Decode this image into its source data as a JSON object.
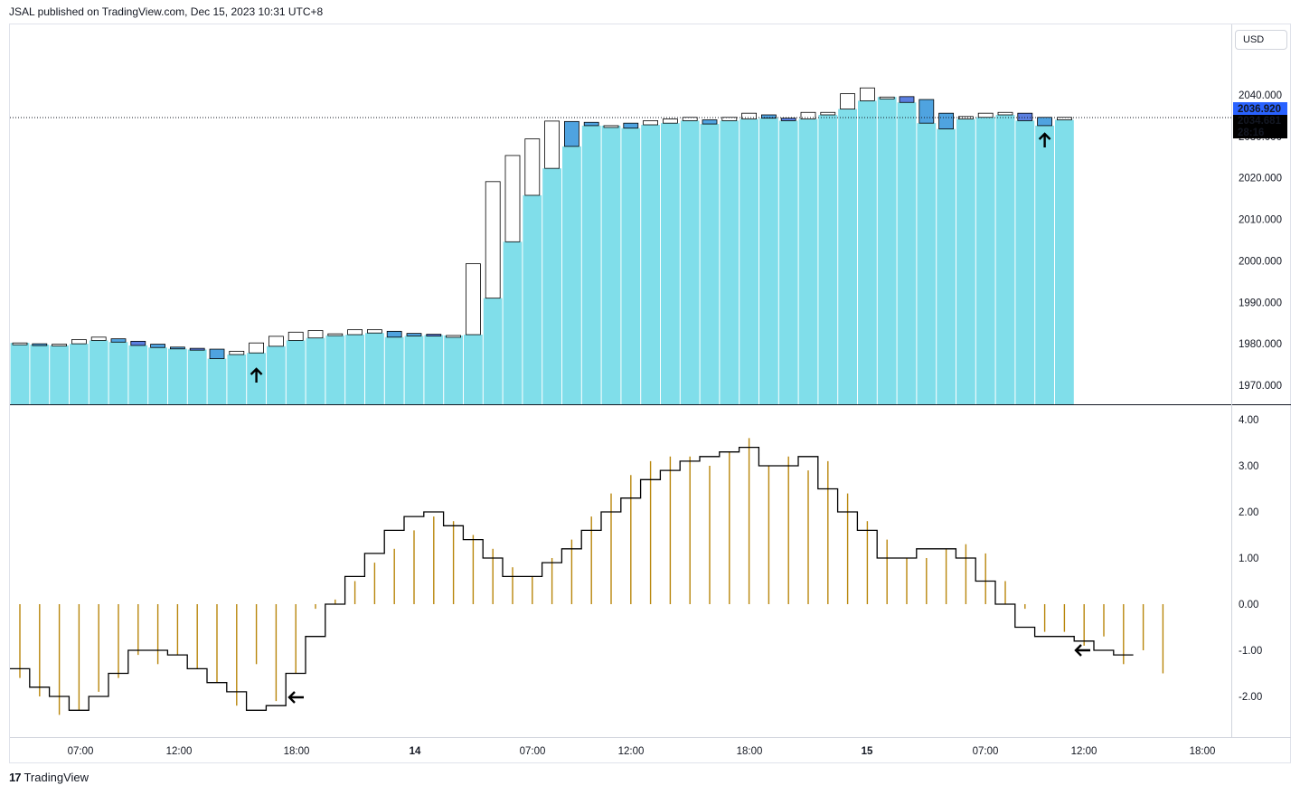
{
  "header": {
    "published": "JSAL published on TradingView.com, Dec 15, 2023 10:31 UTC+8"
  },
  "currency": {
    "label": "USD"
  },
  "footer": {
    "brand": "TradingView"
  },
  "colors": {
    "volume_bar": "#80deea",
    "bull_candle": "#ffffff",
    "bear_candle": "#5b7fe0",
    "bear_candle_light": "#4fa3e0",
    "oscillator_line": "#000000",
    "histogram": "#b8860b",
    "last_price_bg": "#2962ff",
    "countdown_bg": "#000000"
  },
  "chart_data": [
    {
      "type": "candlestick",
      "pane": "price",
      "y_axis": {
        "ticks": [
          "2040.000",
          "2030.000",
          "2020.000",
          "2010.000",
          "2000.000",
          "1990.000",
          "1980.000",
          "1970.000"
        ],
        "ylim": [
          1966,
          2052
        ]
      },
      "last_price": "2036.920",
      "second_label": "2034.681",
      "countdown": "28:16",
      "candles": [
        {
          "o": 1980.2,
          "c": 1980.2
        },
        {
          "o": 1980.0,
          "c": 1979.8
        },
        {
          "o": 1979.6,
          "c": 1979.9
        },
        {
          "o": 1980.0,
          "c": 1981.0
        },
        {
          "o": 1980.8,
          "c": 1981.6
        },
        {
          "o": 1981.2,
          "c": 1980.4
        },
        {
          "o": 1980.6,
          "c": 1979.6
        },
        {
          "o": 1979.9,
          "c": 1979.1
        },
        {
          "o": 1979.2,
          "c": 1978.8
        },
        {
          "o": 1978.9,
          "c": 1978.6
        },
        {
          "o": 1978.7,
          "c": 1976.4
        },
        {
          "o": 1977.4,
          "c": 1978.2
        },
        {
          "o": 1977.8,
          "c": 1980.2
        },
        {
          "o": 1979.4,
          "c": 1981.8
        },
        {
          "o": 1980.8,
          "c": 1982.8
        },
        {
          "o": 1981.4,
          "c": 1983.2
        },
        {
          "o": 1982.0,
          "c": 1982.4
        },
        {
          "o": 1982.2,
          "c": 1983.4
        },
        {
          "o": 1982.6,
          "c": 1983.4
        },
        {
          "o": 1983.0,
          "c": 1981.6
        },
        {
          "o": 1982.5,
          "c": 1981.9
        },
        {
          "o": 1982.3,
          "c": 1982.1
        },
        {
          "o": 1982.0,
          "c": 1982.0
        },
        {
          "o": 1982.2,
          "c": 1999.3
        },
        {
          "o": 1991.0,
          "c": 2019.1
        },
        {
          "o": 2004.6,
          "c": 2025.4
        },
        {
          "o": 2015.8,
          "c": 2029.4
        },
        {
          "o": 2022.3,
          "c": 2033.7
        },
        {
          "o": 2033.6,
          "c": 2027.6
        },
        {
          "o": 2033.4,
          "c": 2032.6
        },
        {
          "o": 2032.6,
          "c": 2032.6
        },
        {
          "o": 2033.2,
          "c": 2032.0
        },
        {
          "o": 2032.8,
          "c": 2033.8
        },
        {
          "o": 2033.2,
          "c": 2034.2
        },
        {
          "o": 2033.8,
          "c": 2034.6
        },
        {
          "o": 2034.0,
          "c": 2033.0
        },
        {
          "o": 2033.8,
          "c": 2034.6
        },
        {
          "o": 2034.2,
          "c": 2035.6
        },
        {
          "o": 2035.2,
          "c": 2034.4
        },
        {
          "o": 2034.4,
          "c": 2033.8
        },
        {
          "o": 2034.2,
          "c": 2035.8
        },
        {
          "o": 2035.2,
          "c": 2035.8
        },
        {
          "o": 2036.6,
          "c": 2040.3
        },
        {
          "o": 2038.6,
          "c": 2041.7
        },
        {
          "o": 2039.5,
          "c": 2039.5
        },
        {
          "o": 2039.6,
          "c": 2038.2
        },
        {
          "o": 2038.9,
          "c": 2033.2
        },
        {
          "o": 2035.6,
          "c": 2031.8
        },
        {
          "o": 2034.2,
          "c": 2034.8
        },
        {
          "o": 2034.6,
          "c": 2035.6
        },
        {
          "o": 2035.2,
          "c": 2035.8
        },
        {
          "o": 2035.6,
          "c": 2033.8
        },
        {
          "o": 2034.6,
          "c": 2032.6
        },
        {
          "o": 2034.0,
          "c": 2034.6
        }
      ]
    },
    {
      "type": "histogram+step-line",
      "pane": "oscillator",
      "y_axis": {
        "ticks": [
          "4.00",
          "3.00",
          "2.00",
          "1.00",
          "0.00",
          "-1.00",
          "-2.00"
        ],
        "ylim": [
          -2.9,
          4.3
        ]
      },
      "histogram": [
        -1.6,
        -2.0,
        -2.4,
        -2.3,
        -1.9,
        -1.6,
        -1.1,
        -1.3,
        -1.1,
        -1.4,
        -1.7,
        -2.2,
        -1.3,
        -2.1,
        -1.5,
        -0.1,
        0.1,
        0.5,
        0.9,
        1.2,
        1.6,
        1.9,
        1.8,
        1.5,
        1.2,
        0.8,
        0.6,
        1.0,
        1.4,
        1.9,
        2.4,
        2.8,
        3.1,
        3.2,
        3.2,
        3.0,
        3.3,
        3.6,
        3.0,
        3.2,
        2.9,
        3.1,
        2.4,
        1.8,
        1.4,
        1.0,
        1.0,
        1.2,
        1.3,
        1.1,
        0.5,
        -0.1,
        -0.6,
        -0.6,
        -0.9,
        -0.7,
        -1.3,
        -1.0,
        -1.5
      ],
      "line": [
        -1.4,
        -1.8,
        -2.0,
        -2.3,
        -2.0,
        -1.5,
        -1.0,
        -1.0,
        -1.1,
        -1.4,
        -1.7,
        -1.9,
        -2.3,
        -2.2,
        -1.5,
        -0.7,
        0.0,
        0.6,
        1.1,
        1.6,
        1.9,
        2.0,
        1.7,
        1.4,
        1.0,
        0.6,
        0.6,
        0.9,
        1.2,
        1.6,
        2.0,
        2.3,
        2.7,
        2.9,
        3.1,
        3.2,
        3.3,
        3.4,
        3.0,
        3.0,
        3.2,
        2.5,
        2.0,
        1.6,
        1.0,
        1.0,
        1.2,
        1.2,
        1.0,
        0.5,
        0.0,
        -0.5,
        -0.7,
        -0.7,
        -0.8,
        -1.0,
        -1.1
      ]
    }
  ],
  "x_axis": {
    "ticks": [
      {
        "label": "07:00",
        "bold": false
      },
      {
        "label": "12:00",
        "bold": false
      },
      {
        "label": "18:00",
        "bold": false
      },
      {
        "label": "14",
        "bold": true
      },
      {
        "label": "07:00",
        "bold": false
      },
      {
        "label": "12:00",
        "bold": false
      },
      {
        "label": "18:00",
        "bold": false
      },
      {
        "label": "15",
        "bold": true
      },
      {
        "label": "07:00",
        "bold": false
      },
      {
        "label": "12:00",
        "bold": false
      },
      {
        "label": "18:00",
        "bold": false
      }
    ]
  },
  "markers": [
    {
      "pane": "price",
      "icon": "arrow-up-icon",
      "bar": 12
    },
    {
      "pane": "price",
      "icon": "arrow-up-icon",
      "bar": 52
    },
    {
      "pane": "oscillator",
      "icon": "arrow-left-icon",
      "bar": 14
    },
    {
      "pane": "oscillator",
      "icon": "arrow-left-icon",
      "bar": 54
    }
  ]
}
